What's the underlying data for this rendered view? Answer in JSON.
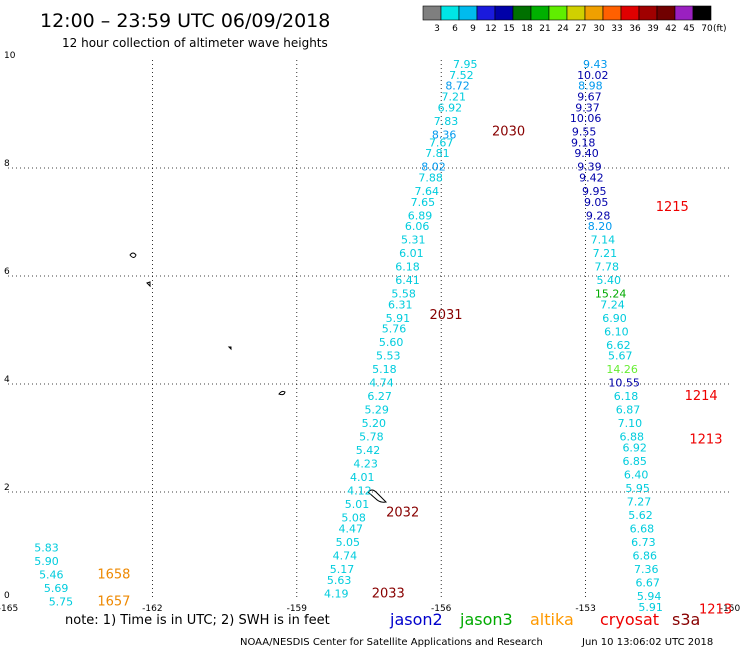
{
  "header": {
    "title": "12:00 – 23:59 UTC 06/09/2018",
    "subtitle": "12 hour collection of altimeter wave heights"
  },
  "colorbar": {
    "unit": "(ft)",
    "colors": [
      "#7f7f7f",
      "#00e5e5",
      "#00bbee",
      "#1a1add",
      "#0000a8",
      "#007000",
      "#00b000",
      "#60ee00",
      "#d0d000",
      "#f0a000",
      "#ff6000",
      "#e00000",
      "#a00000",
      "#700000",
      "#9a20c0",
      "#000000"
    ],
    "labels": [
      "3",
      "6",
      "9",
      "12",
      "15",
      "18",
      "21",
      "24",
      "27",
      "30",
      "33",
      "36",
      "39",
      "42",
      "45",
      "70"
    ]
  },
  "axes": {
    "x_ticks": [
      -165,
      -162,
      -159,
      -156,
      -153,
      -150
    ],
    "x_tick_labels": [
      "-165",
      "-162",
      "-159",
      "-156",
      "-153",
      "-150"
    ],
    "y_ticks": [
      0,
      2,
      4,
      6,
      8,
      10
    ],
    "y_tick_labels": [
      "0",
      "2",
      "4",
      "6",
      "8",
      "10"
    ],
    "xlim": [
      -165,
      -150
    ],
    "ylim": [
      0,
      10
    ]
  },
  "colors": {
    "low": "#00ccdd",
    "mid": "#0099ee",
    "high": "#0000aa",
    "green_med": "#00aa00",
    "green_light": "#66ee33",
    "time_jason": "#880000",
    "time_s3a": "#ee0000",
    "time_altika": "#ee8800"
  },
  "satellite_passes": [
    {
      "name": "pass-2030",
      "points": [
        {
          "lon": -155.5,
          "lat": 9.85,
          "v": "7.95",
          "c": "low"
        },
        {
          "lon": -155.58,
          "lat": 9.65,
          "v": "7.52",
          "c": "low"
        },
        {
          "lon": -155.66,
          "lat": 9.45,
          "v": "8.72",
          "c": "mid"
        },
        {
          "lon": -155.74,
          "lat": 9.25,
          "v": "7.21",
          "c": "low"
        },
        {
          "lon": -155.82,
          "lat": 9.05,
          "v": "6.92",
          "c": "low"
        },
        {
          "lon": -155.9,
          "lat": 8.8,
          "v": "7.83",
          "c": "low"
        },
        {
          "lon": -155.94,
          "lat": 8.55,
          "v": "8.36",
          "c": "mid"
        },
        {
          "lon": -156.0,
          "lat": 8.4,
          "v": "7.67",
          "c": "low"
        },
        {
          "lon": -156.08,
          "lat": 8.2,
          "v": "7.81",
          "c": "low"
        },
        {
          "lon": -156.16,
          "lat": 7.95,
          "v": "8.02",
          "c": "mid"
        },
        {
          "lon": -156.22,
          "lat": 7.75,
          "v": "7.88",
          "c": "low"
        },
        {
          "lon": -156.3,
          "lat": 7.5,
          "v": "7.64",
          "c": "low"
        },
        {
          "lon": -156.38,
          "lat": 7.3,
          "v": "7.65",
          "c": "low"
        },
        {
          "lon": -156.44,
          "lat": 7.05,
          "v": "6.89",
          "c": "low"
        },
        {
          "lon": -156.5,
          "lat": 6.85,
          "v": "6.06",
          "c": "low"
        },
        {
          "lon": -156.58,
          "lat": 6.6,
          "v": "5.31",
          "c": "low"
        },
        {
          "lon": -156.62,
          "lat": 6.35,
          "v": "6.01",
          "c": "low"
        },
        {
          "lon": -156.7,
          "lat": 6.1,
          "v": "6.18",
          "c": "low"
        }
      ],
      "label": {
        "lon": -154.6,
        "lat": 8.6,
        "text": "2030",
        "c": "time_jason"
      }
    },
    {
      "name": "pass-2031",
      "points": [
        {
          "lon": -156.7,
          "lat": 5.85,
          "v": "6.41",
          "c": "low"
        },
        {
          "lon": -156.78,
          "lat": 5.6,
          "v": "5.58",
          "c": "low"
        },
        {
          "lon": -156.85,
          "lat": 5.4,
          "v": "6.31",
          "c": "low"
        },
        {
          "lon": -156.9,
          "lat": 5.15,
          "v": "5.91",
          "c": "low"
        },
        {
          "lon": -156.98,
          "lat": 4.95,
          "v": "5.76",
          "c": "low"
        },
        {
          "lon": -157.04,
          "lat": 4.7,
          "v": "5.60",
          "c": "low"
        },
        {
          "lon": -157.1,
          "lat": 4.45,
          "v": "5.53",
          "c": "low"
        },
        {
          "lon": -157.18,
          "lat": 4.2,
          "v": "5.18",
          "c": "low"
        },
        {
          "lon": -157.24,
          "lat": 3.95,
          "v": "4.74",
          "c": "low"
        },
        {
          "lon": -157.28,
          "lat": 3.7,
          "v": "6.27",
          "c": "low"
        },
        {
          "lon": -157.34,
          "lat": 3.45,
          "v": "5.29",
          "c": "low"
        },
        {
          "lon": -157.4,
          "lat": 3.2,
          "v": "5.20",
          "c": "low"
        },
        {
          "lon": -157.45,
          "lat": 2.95,
          "v": "5.78",
          "c": "low"
        },
        {
          "lon": -157.52,
          "lat": 2.7,
          "v": "5.42",
          "c": "low"
        },
        {
          "lon": -157.57,
          "lat": 2.45,
          "v": "4.23",
          "c": "low"
        },
        {
          "lon": -157.64,
          "lat": 2.2,
          "v": "4.01",
          "c": "low"
        },
        {
          "lon": -157.7,
          "lat": 1.95,
          "v": "4.12",
          "c": "low"
        },
        {
          "lon": -157.75,
          "lat": 1.7,
          "v": "5.01",
          "c": "low"
        }
      ],
      "label": {
        "lon": -155.9,
        "lat": 5.2,
        "text": "2031",
        "c": "time_jason"
      }
    },
    {
      "name": "pass-2032",
      "points": [
        {
          "lon": -157.82,
          "lat": 1.45,
          "v": "5.08",
          "c": "low"
        },
        {
          "lon": -157.88,
          "lat": 1.25,
          "v": "4.47",
          "c": "low"
        },
        {
          "lon": -157.94,
          "lat": 1.0,
          "v": "5.05",
          "c": "low"
        },
        {
          "lon": -158.0,
          "lat": 0.75,
          "v": "4.74",
          "c": "low"
        },
        {
          "lon": -158.06,
          "lat": 0.5,
          "v": "5.17",
          "c": "low"
        },
        {
          "lon": -158.12,
          "lat": 0.3,
          "v": "5.63",
          "c": "low"
        },
        {
          "lon": -158.18,
          "lat": 0.05,
          "v": "4.19",
          "c": "low"
        }
      ],
      "label": {
        "lon": -156.8,
        "lat": 1.55,
        "text": "2032",
        "c": "time_jason"
      }
    },
    {
      "name": "pass-2033",
      "points": [],
      "label": {
        "lon": -157.1,
        "lat": 0.05,
        "text": "2033",
        "c": "time_jason"
      }
    },
    {
      "name": "pass-1215",
      "points": [
        {
          "lon": -152.8,
          "lat": 9.85,
          "v": "9.43",
          "c": "mid"
        },
        {
          "lon": -152.85,
          "lat": 9.65,
          "v": "10.02",
          "c": "high"
        },
        {
          "lon": -152.9,
          "lat": 9.45,
          "v": "8.98",
          "c": "mid"
        },
        {
          "lon": -152.92,
          "lat": 9.25,
          "v": "9.67",
          "c": "high"
        },
        {
          "lon": -152.96,
          "lat": 9.05,
          "v": "9.37",
          "c": "high"
        },
        {
          "lon": -153.0,
          "lat": 8.85,
          "v": "10.06",
          "c": "high"
        },
        {
          "lon": -153.03,
          "lat": 8.6,
          "v": "9.55",
          "c": "high"
        },
        {
          "lon": -153.05,
          "lat": 8.4,
          "v": "9.18",
          "c": "high"
        },
        {
          "lon": -152.98,
          "lat": 8.2,
          "v": "9.40",
          "c": "high"
        },
        {
          "lon": -152.92,
          "lat": 7.95,
          "v": "9.39",
          "c": "high"
        },
        {
          "lon": -152.88,
          "lat": 7.75,
          "v": "9.42",
          "c": "high"
        },
        {
          "lon": -152.82,
          "lat": 7.5,
          "v": "9.95",
          "c": "high"
        },
        {
          "lon": -152.78,
          "lat": 7.3,
          "v": "9.05",
          "c": "high"
        },
        {
          "lon": -152.74,
          "lat": 7.05,
          "v": "9.28",
          "c": "high"
        },
        {
          "lon": -152.7,
          "lat": 6.85,
          "v": "8.20",
          "c": "mid"
        },
        {
          "lon": -152.64,
          "lat": 6.6,
          "v": "7.14",
          "c": "low"
        },
        {
          "lon": -152.6,
          "lat": 6.35,
          "v": "7.21",
          "c": "low"
        },
        {
          "lon": -152.56,
          "lat": 6.1,
          "v": "7.78",
          "c": "low"
        }
      ],
      "label": {
        "lon": -151.2,
        "lat": 7.2,
        "text": "1215",
        "c": "time_s3a"
      }
    },
    {
      "name": "pass-1214",
      "points": [
        {
          "lon": -152.52,
          "lat": 5.85,
          "v": "5.40",
          "c": "low"
        },
        {
          "lon": -152.48,
          "lat": 5.6,
          "v": "15.24",
          "c": "green_med"
        },
        {
          "lon": -152.44,
          "lat": 5.4,
          "v": "7.24",
          "c": "low"
        },
        {
          "lon": -152.4,
          "lat": 5.15,
          "v": "6.90",
          "c": "low"
        },
        {
          "lon": -152.36,
          "lat": 4.9,
          "v": "6.10",
          "c": "low"
        },
        {
          "lon": -152.32,
          "lat": 4.65,
          "v": "6.62",
          "c": "low"
        },
        {
          "lon": -152.28,
          "lat": 4.45,
          "v": "5.67",
          "c": "low"
        },
        {
          "lon": -152.24,
          "lat": 4.2,
          "v": "14.26",
          "c": "green_light"
        },
        {
          "lon": -152.2,
          "lat": 3.95,
          "v": "10.55",
          "c": "high"
        },
        {
          "lon": -152.16,
          "lat": 3.7,
          "v": "6.18",
          "c": "low"
        },
        {
          "lon": -152.12,
          "lat": 3.45,
          "v": "6.87",
          "c": "low"
        },
        {
          "lon": -152.08,
          "lat": 3.2,
          "v": "7.10",
          "c": "low"
        },
        {
          "lon": -152.04,
          "lat": 2.95,
          "v": "6.88",
          "c": "low"
        }
      ],
      "label": {
        "lon": -150.6,
        "lat": 3.7,
        "text": "1214",
        "c": "time_s3a"
      }
    },
    {
      "name": "pass-1213",
      "points": [
        {
          "lon": -151.98,
          "lat": 2.75,
          "v": "6.92",
          "c": "low"
        },
        {
          "lon": -151.98,
          "lat": 2.5,
          "v": "6.85",
          "c": "low"
        },
        {
          "lon": -151.95,
          "lat": 2.25,
          "v": "6.40",
          "c": "low"
        },
        {
          "lon": -151.92,
          "lat": 2.0,
          "v": "5.95",
          "c": "low"
        },
        {
          "lon": -151.89,
          "lat": 1.75,
          "v": "7.27",
          "c": "low"
        },
        {
          "lon": -151.86,
          "lat": 1.5,
          "v": "5.62",
          "c": "low"
        },
        {
          "lon": -151.83,
          "lat": 1.25,
          "v": "6.68",
          "c": "low"
        },
        {
          "lon": -151.8,
          "lat": 1.0,
          "v": "6.73",
          "c": "low"
        },
        {
          "lon": -151.77,
          "lat": 0.75,
          "v": "6.86",
          "c": "low"
        },
        {
          "lon": -151.74,
          "lat": 0.5,
          "v": "7.36",
          "c": "low"
        },
        {
          "lon": -151.71,
          "lat": 0.25,
          "v": "6.67",
          "c": "low"
        },
        {
          "lon": -151.68,
          "lat": 0.0,
          "v": "5.94",
          "c": "low"
        },
        {
          "lon": -151.65,
          "lat": -0.2,
          "v": "5.91",
          "c": "low"
        }
      ],
      "label": {
        "lon": -150.5,
        "lat": 2.9,
        "text": "1213",
        "c": "time_s3a"
      }
    },
    {
      "name": "pass-1213b",
      "points": [],
      "label": {
        "lon": -150.3,
        "lat": -0.25,
        "text": "1213",
        "c": "time_s3a"
      }
    },
    {
      "name": "pass-1658",
      "points": [
        {
          "lon": -164.2,
          "lat": 0.9,
          "v": "5.83",
          "c": "low"
        },
        {
          "lon": -164.2,
          "lat": 0.65,
          "v": "5.90",
          "c": "low"
        },
        {
          "lon": -164.1,
          "lat": 0.4,
          "v": "5.46",
          "c": "low"
        },
        {
          "lon": -164.0,
          "lat": 0.15,
          "v": "5.69",
          "c": "low"
        },
        {
          "lon": -163.9,
          "lat": -0.1,
          "v": "5.75",
          "c": "low"
        }
      ],
      "label": {
        "lon": -162.8,
        "lat": 0.4,
        "text": "1658",
        "c": "time_altika"
      }
    },
    {
      "name": "pass-1657",
      "points": [],
      "label": {
        "lon": -162.8,
        "lat": -0.1,
        "text": "1657",
        "c": "time_altika"
      }
    }
  ],
  "footer": {
    "note": "note:  1) Time is in UTC;  2) SWH is in feet",
    "sats": [
      {
        "name": "jason2",
        "color": "#0000cc"
      },
      {
        "name": "jason3",
        "color": "#00aa00"
      },
      {
        "name": "altika",
        "color": "#ff9900"
      },
      {
        "name": "cryosat",
        "color": "#ee0000"
      },
      {
        "name": "s3a",
        "color": "#880000"
      }
    ],
    "credit": "NOAA/NESDIS Center for Satellite Applications and Research",
    "timestamp": "Jun 10 13:06:02 UTC 2018"
  }
}
